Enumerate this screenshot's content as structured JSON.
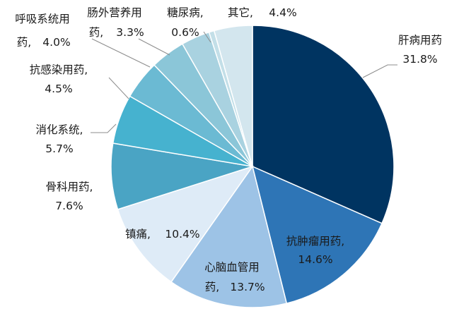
{
  "chart_data": {
    "type": "pie",
    "title": "",
    "start_angle_deg": 0,
    "direction": "clockwise",
    "slices": [
      {
        "label": "肝病用药",
        "value_text": "31.8%",
        "value": 31.8,
        "color": "#003461"
      },
      {
        "label": "抗肿瘤用药,",
        "value_text": "14.6%",
        "value": 14.6,
        "color": "#2e75b6"
      },
      {
        "label": "心脑血管用",
        "label2": "药,",
        "value_text": "13.7%",
        "value": 13.7,
        "color": "#9dc3e6"
      },
      {
        "label": "镇痛,",
        "value_text": "10.4%",
        "value": 10.4,
        "color": "#deebf7"
      },
      {
        "label": "骨科用药,",
        "value_text": "7.6%",
        "value": 7.6,
        "color": "#4aa4c4"
      },
      {
        "label": "消化系统,",
        "value_text": "5.7%",
        "value": 5.7,
        "color": "#46b2cf"
      },
      {
        "label": "抗感染用药,",
        "value_text": "4.5%",
        "value": 4.5,
        "color": "#6bbad3"
      },
      {
        "label": "呼吸系统用",
        "label2": "药,",
        "value_text": "4.0%",
        "value": 4.0,
        "color": "#8bc6d8"
      },
      {
        "label": "肠外营养用",
        "label2": "药,",
        "value_text": "3.3%",
        "value": 3.3,
        "color": "#a9d2e0"
      },
      {
        "label": "糖尿病,",
        "value_text": "0.6%",
        "value": 0.6,
        "color": "#c3dfe8"
      },
      {
        "label": "其它,",
        "value_text": "4.4%",
        "value": 4.4,
        "color": "#d3e6ee"
      }
    ]
  }
}
